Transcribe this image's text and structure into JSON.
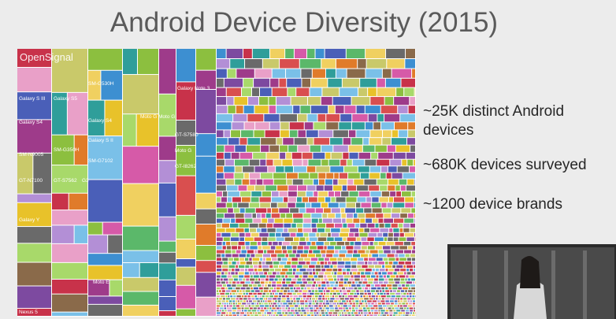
{
  "slide": {
    "title": "Android Device Diversity (2015)",
    "bullets": [
      {
        "lines": [
          "~25K distinct Android",
          "devices"
        ]
      },
      {
        "lines": [
          "~680K devices surveyed"
        ]
      },
      {
        "lines": [
          "~1200 device brands"
        ]
      }
    ],
    "treemap": {
      "brand": "OpenSignal",
      "labels": [
        "Galaxy S III",
        "Galaxy S5",
        "SM-G530H",
        "Galaxy S4",
        "Galaxy S4",
        "Moto G",
        "Moto G",
        "Galaxy Note 3",
        "Galaxy S II",
        "SM-G350H",
        "SM-N9005",
        "SM-G7102",
        "GT-S7580",
        "Moto G",
        "GT-N7100",
        "GT-S7562",
        "G3",
        "GT-I8262",
        "Galaxy Y",
        "Nexus 5",
        "Moto E"
      ]
    }
  }
}
